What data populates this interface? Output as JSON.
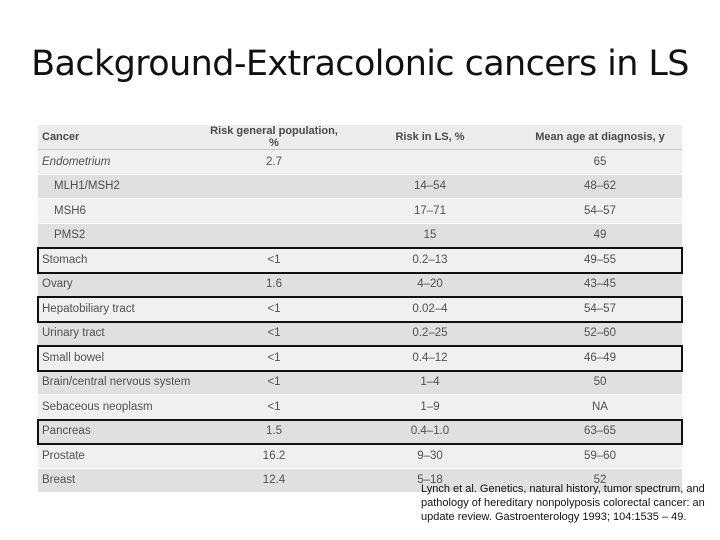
{
  "slide": {
    "title": "Background-Extracolonic cancers in LS"
  },
  "table": {
    "headers": [
      "Cancer",
      "Risk general population, %",
      "Risk in LS, %",
      "Mean age at diagnosis, y"
    ],
    "rows": [
      {
        "cancer": "Endometrium",
        "general": "2.7",
        "ls": "",
        "age": "65",
        "style": "category",
        "highlighted": false
      },
      {
        "cancer": "MLH1/MSH2",
        "general": "",
        "ls": "14–54",
        "age": "48–62",
        "style": "sub",
        "highlighted": false
      },
      {
        "cancer": "MSH6",
        "general": "",
        "ls": "17–71",
        "age": "54–57",
        "style": "sub",
        "highlighted": false
      },
      {
        "cancer": "PMS2",
        "general": "",
        "ls": "15",
        "age": "49",
        "style": "sub",
        "highlighted": false
      },
      {
        "cancer": "Stomach",
        "general": "<1",
        "ls": "0.2–13",
        "age": "49–55",
        "style": "normal",
        "highlighted": true
      },
      {
        "cancer": "Ovary",
        "general": "1.6",
        "ls": "4–20",
        "age": "43–45",
        "style": "normal",
        "highlighted": false
      },
      {
        "cancer": "Hepatobiliary tract",
        "general": "<1",
        "ls": "0.02–4",
        "age": "54–57",
        "style": "normal",
        "highlighted": true
      },
      {
        "cancer": "Urinary tract",
        "general": "<1",
        "ls": "0.2–25",
        "age": "52–60",
        "style": "normal",
        "highlighted": false
      },
      {
        "cancer": "Small bowel",
        "general": "<1",
        "ls": "0.4–12",
        "age": "46–49",
        "style": "normal",
        "highlighted": true
      },
      {
        "cancer": "Brain/central nervous system",
        "general": "<1",
        "ls": "1–4",
        "age": "50",
        "style": "normal",
        "highlighted": false
      },
      {
        "cancer": "Sebaceous neoplasm",
        "general": "<1",
        "ls": "1–9",
        "age": "NA",
        "style": "normal",
        "highlighted": false
      },
      {
        "cancer": "Pancreas",
        "general": "1.5",
        "ls": "0.4–1.0",
        "age": "63–65",
        "style": "normal",
        "highlighted": true
      },
      {
        "cancer": "Prostate",
        "general": "16.2",
        "ls": "9–30",
        "age": "59–60",
        "style": "normal",
        "highlighted": false
      },
      {
        "cancer": "Breast",
        "general": "12.4",
        "ls": "5–18",
        "age": "52",
        "style": "normal",
        "highlighted": false
      }
    ]
  },
  "citation": "Lynch et al. Genetics, natural history, tumor spectrum, and pathology of hereditary nonpolyposis colorectal cancer: an update review. Gastroenterology 1993; 104:1535 – 49."
}
